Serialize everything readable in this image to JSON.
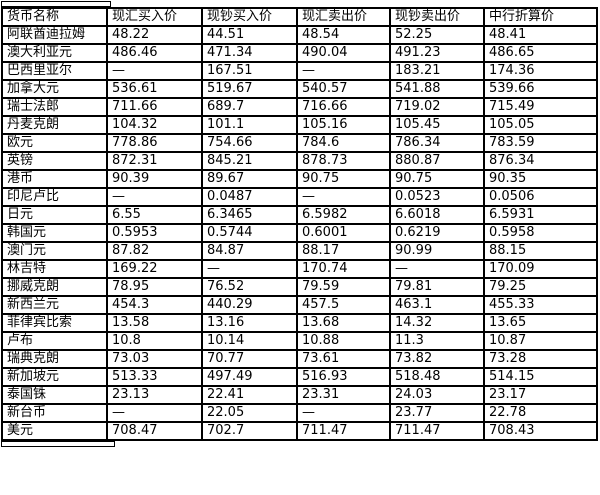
{
  "colors": {
    "background": "#ffffff",
    "border": "#000000",
    "text": "#000000"
  },
  "table": {
    "columns": [
      {
        "key": "currency-name",
        "label": "货币名称"
      },
      {
        "key": "spot-buy",
        "label": "现汇买入价"
      },
      {
        "key": "cash-buy",
        "label": "现钞买入价"
      },
      {
        "key": "spot-sell",
        "label": "现汇卖出价"
      },
      {
        "key": "cash-sell",
        "label": "现钞卖出价"
      },
      {
        "key": "boc-conversion",
        "label": "中行折算价"
      }
    ],
    "rows": [
      {
        "currency": "阿联酋迪拉姆",
        "values": [
          "48.22",
          "44.51",
          "48.54",
          "52.25",
          "48.41"
        ]
      },
      {
        "currency": "澳大利亚元",
        "values": [
          "486.46",
          "471.34",
          "490.04",
          "491.23",
          "486.65"
        ]
      },
      {
        "currency": "巴西里亚尔",
        "values": [
          "—",
          "167.51",
          "—",
          "183.21",
          "174.36"
        ]
      },
      {
        "currency": "加拿大元",
        "values": [
          "536.61",
          "519.67",
          "540.57",
          "541.88",
          "539.66"
        ]
      },
      {
        "currency": "瑞士法郎",
        "values": [
          "711.66",
          "689.7",
          "716.66",
          "719.02",
          "715.49"
        ]
      },
      {
        "currency": "丹麦克朗",
        "values": [
          "104.32",
          "101.1",
          "105.16",
          "105.45",
          "105.05"
        ]
      },
      {
        "currency": "欧元",
        "values": [
          "778.86",
          "754.66",
          "784.6",
          "786.34",
          "783.59"
        ]
      },
      {
        "currency": "英镑",
        "values": [
          "872.31",
          "845.21",
          "878.73",
          "880.87",
          "876.34"
        ]
      },
      {
        "currency": "港币",
        "values": [
          "90.39",
          "89.67",
          "90.75",
          "90.75",
          "90.35"
        ]
      },
      {
        "currency": "印尼卢比",
        "values": [
          "—",
          "0.0487",
          "—",
          "0.0523",
          "0.0506"
        ]
      },
      {
        "currency": "日元",
        "values": [
          "6.55",
          "6.3465",
          "6.5982",
          "6.6018",
          "6.5931"
        ]
      },
      {
        "currency": "韩国元",
        "values": [
          "0.5953",
          "0.5744",
          "0.6001",
          "0.6219",
          "0.5958"
        ]
      },
      {
        "currency": "澳门元",
        "values": [
          "87.82",
          "84.87",
          "88.17",
          "90.99",
          "88.15"
        ]
      },
      {
        "currency": "林吉特",
        "values": [
          "169.22",
          "—",
          "170.74",
          "—",
          "170.09"
        ]
      },
      {
        "currency": "挪威克朗",
        "values": [
          "78.95",
          "76.52",
          "79.59",
          "79.81",
          "79.25"
        ]
      },
      {
        "currency": "新西兰元",
        "values": [
          "454.3",
          "440.29",
          "457.5",
          "463.1",
          "455.33"
        ]
      },
      {
        "currency": "菲律宾比索",
        "values": [
          "13.58",
          "13.16",
          "13.68",
          "14.32",
          "13.65"
        ]
      },
      {
        "currency": "卢布",
        "values": [
          "10.8",
          "10.14",
          "10.88",
          "11.3",
          "10.87"
        ]
      },
      {
        "currency": "瑞典克朗",
        "values": [
          "73.03",
          "70.77",
          "73.61",
          "73.82",
          "73.28"
        ]
      },
      {
        "currency": "新加坡元",
        "values": [
          "513.33",
          "497.49",
          "516.93",
          "518.48",
          "514.15"
        ]
      },
      {
        "currency": "泰国铢",
        "values": [
          "23.13",
          "22.41",
          "23.31",
          "24.03",
          "23.17"
        ]
      },
      {
        "currency": "新台币",
        "values": [
          "—",
          "22.05",
          "—",
          "23.77",
          "22.78"
        ]
      },
      {
        "currency": "美元",
        "values": [
          "708.47",
          "702.7",
          "711.47",
          "711.47",
          "708.43"
        ]
      }
    ]
  }
}
